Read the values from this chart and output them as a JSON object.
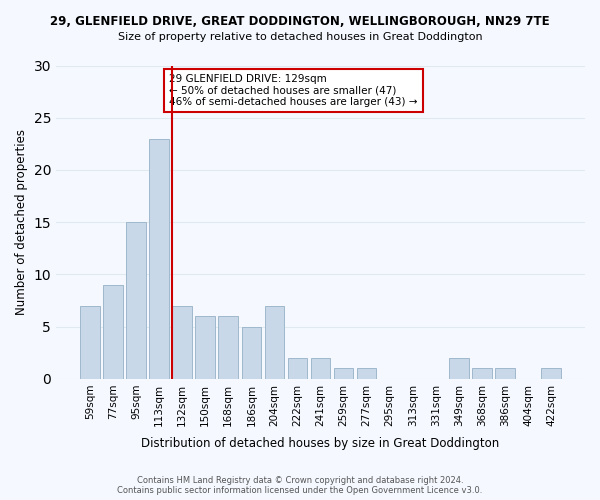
{
  "title_line1": "29, GLENFIELD DRIVE, GREAT DODDINGTON, WELLINGBOROUGH, NN29 7TE",
  "title_line2": "Size of property relative to detached houses in Great Doddington",
  "xlabel": "Distribution of detached houses by size in Great Doddington",
  "ylabel": "Number of detached properties",
  "footer_line1": "Contains HM Land Registry data © Crown copyright and database right 2024.",
  "footer_line2": "Contains public sector information licensed under the Open Government Licence v3.0.",
  "bar_labels": [
    "59sqm",
    "77sqm",
    "95sqm",
    "113sqm",
    "132sqm",
    "150sqm",
    "168sqm",
    "186sqm",
    "204sqm",
    "222sqm",
    "241sqm",
    "259sqm",
    "277sqm",
    "295sqm",
    "313sqm",
    "331sqm",
    "349sqm",
    "368sqm",
    "386sqm",
    "404sqm",
    "422sqm"
  ],
  "bar_heights": [
    7,
    9,
    15,
    23,
    7,
    6,
    6,
    5,
    7,
    2,
    2,
    1,
    1,
    0,
    0,
    0,
    2,
    1,
    1,
    0,
    1
  ],
  "bar_color": "#c8d8e8",
  "bar_edge_color": "#a0b8cc",
  "grid_color": "#e0e8f0",
  "annotation_box_edge": "#cc0000",
  "vline_color": "#cc0000",
  "annotation_line1": "29 GLENFIELD DRIVE: 129sqm",
  "annotation_line2": "← 50% of detached houses are smaller (47)",
  "annotation_line3": "46% of semi-detached houses are larger (43) →",
  "vline_x_index": 4,
  "ylim": [
    0,
    30
  ],
  "yticks": [
    0,
    5,
    10,
    15,
    20,
    25,
    30
  ],
  "bg_color": "#f5f9ff",
  "plot_bg_color": "#f5f9ff"
}
